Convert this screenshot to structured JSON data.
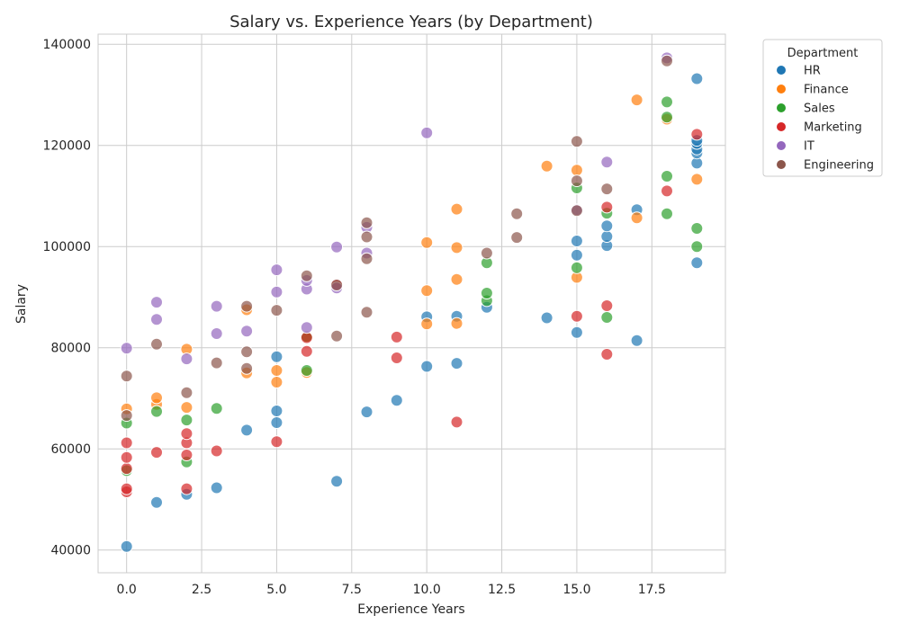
{
  "chart_data": {
    "type": "scatter",
    "title": "Salary vs. Experience Years (by Department)",
    "xlabel": "Experience Years",
    "ylabel": "Salary",
    "xlim": [
      -0.95,
      19.95
    ],
    "ylim": [
      35500,
      142000
    ],
    "x_ticks": [
      0,
      2.5,
      5,
      7.5,
      10,
      12.5,
      15,
      17.5
    ],
    "x_tick_labels": [
      "0.0",
      "2.5",
      "5.0",
      "7.5",
      "10.0",
      "12.5",
      "15.0",
      "17.5"
    ],
    "y_ticks": [
      40000,
      60000,
      80000,
      100000,
      120000,
      140000
    ],
    "y_tick_labels": [
      "40000",
      "60000",
      "80000",
      "100000",
      "120000",
      "140000"
    ],
    "grid": true,
    "legend": {
      "title": "Department",
      "placement": "outside-top-right"
    },
    "series": [
      {
        "name": "HR",
        "color": "#1f77b4",
        "points": [
          [
            0,
            40700
          ],
          [
            1,
            49400
          ],
          [
            2,
            51000
          ],
          [
            3,
            52300
          ],
          [
            4,
            63700
          ],
          [
            5,
            65200
          ],
          [
            5,
            67500
          ],
          [
            5,
            78200
          ],
          [
            7,
            53600
          ],
          [
            8,
            67300
          ],
          [
            9,
            69600
          ],
          [
            10,
            76300
          ],
          [
            10,
            86100
          ],
          [
            11,
            76900
          ],
          [
            11,
            86200
          ],
          [
            12,
            88000
          ],
          [
            14,
            85900
          ],
          [
            15,
            83000
          ],
          [
            15,
            98300
          ],
          [
            15,
            101100
          ],
          [
            16,
            100200
          ],
          [
            16,
            102000
          ],
          [
            16,
            104100
          ],
          [
            17,
            81400
          ],
          [
            17,
            107300
          ],
          [
            19,
            96800
          ],
          [
            19,
            116500
          ],
          [
            19,
            118500
          ],
          [
            19,
            119300
          ],
          [
            19,
            120400
          ],
          [
            19,
            121000
          ],
          [
            19,
            133200
          ]
        ]
      },
      {
        "name": "Finance",
        "color": "#ff7f0e",
        "points": [
          [
            0,
            67900
          ],
          [
            1,
            68800
          ],
          [
            1,
            70100
          ],
          [
            2,
            68200
          ],
          [
            2,
            79700
          ],
          [
            4,
            75000
          ],
          [
            4,
            87500
          ],
          [
            5,
            73200
          ],
          [
            5,
            75500
          ],
          [
            6,
            75100
          ],
          [
            6,
            82000
          ],
          [
            10,
            84700
          ],
          [
            10,
            91300
          ],
          [
            10,
            100800
          ],
          [
            11,
            84800
          ],
          [
            11,
            93500
          ],
          [
            11,
            99800
          ],
          [
            11,
            107400
          ],
          [
            14,
            115900
          ],
          [
            15,
            93900
          ],
          [
            15,
            115100
          ],
          [
            17,
            105700
          ],
          [
            17,
            129000
          ],
          [
            18,
            125200
          ],
          [
            19,
            113300
          ]
        ]
      },
      {
        "name": "Sales",
        "color": "#2ca02c",
        "points": [
          [
            0,
            55700
          ],
          [
            0,
            65100
          ],
          [
            1,
            67400
          ],
          [
            2,
            57400
          ],
          [
            2,
            65700
          ],
          [
            3,
            68000
          ],
          [
            6,
            75500
          ],
          [
            6,
            82200
          ],
          [
            12,
            89300
          ],
          [
            12,
            90800
          ],
          [
            12,
            96800
          ],
          [
            15,
            95800
          ],
          [
            15,
            111600
          ],
          [
            16,
            86000
          ],
          [
            16,
            106600
          ],
          [
            18,
            106500
          ],
          [
            18,
            113900
          ],
          [
            18,
            125600
          ],
          [
            18,
            128600
          ],
          [
            19,
            100000
          ],
          [
            19,
            103600
          ]
        ]
      },
      {
        "name": "Marketing",
        "color": "#d62728",
        "points": [
          [
            0,
            51500
          ],
          [
            0,
            52100
          ],
          [
            0,
            56100
          ],
          [
            0,
            58300
          ],
          [
            0,
            61200
          ],
          [
            1,
            59300
          ],
          [
            2,
            52100
          ],
          [
            2,
            58800
          ],
          [
            2,
            61200
          ],
          [
            2,
            63000
          ],
          [
            3,
            59600
          ],
          [
            5,
            61400
          ],
          [
            6,
            79300
          ],
          [
            6,
            82000
          ],
          [
            7,
            92500
          ],
          [
            9,
            78000
          ],
          [
            9,
            82100
          ],
          [
            11,
            65300
          ],
          [
            15,
            86200
          ],
          [
            16,
            78700
          ],
          [
            16,
            88300
          ],
          [
            16,
            107800
          ],
          [
            18,
            111000
          ],
          [
            19,
            122200
          ]
        ]
      },
      {
        "name": "IT",
        "color": "#9467bd",
        "points": [
          [
            0,
            79900
          ],
          [
            1,
            85600
          ],
          [
            1,
            89000
          ],
          [
            2,
            77800
          ],
          [
            3,
            82800
          ],
          [
            3,
            88200
          ],
          [
            4,
            83300
          ],
          [
            5,
            91000
          ],
          [
            5,
            95400
          ],
          [
            6,
            84000
          ],
          [
            6,
            91600
          ],
          [
            6,
            93300
          ],
          [
            7,
            91800
          ],
          [
            7,
            99900
          ],
          [
            8,
            98700
          ],
          [
            8,
            103800
          ],
          [
            10,
            122500
          ],
          [
            15,
            107300
          ],
          [
            16,
            116700
          ],
          [
            18,
            137300
          ]
        ]
      },
      {
        "name": "Engineering",
        "color": "#8c564b",
        "points": [
          [
            0,
            66600
          ],
          [
            0,
            74400
          ],
          [
            1,
            80700
          ],
          [
            2,
            71100
          ],
          [
            3,
            77000
          ],
          [
            4,
            75900
          ],
          [
            4,
            79200
          ],
          [
            4,
            88200
          ],
          [
            5,
            87400
          ],
          [
            6,
            94200
          ],
          [
            7,
            82300
          ],
          [
            7,
            92400
          ],
          [
            8,
            87000
          ],
          [
            8,
            97600
          ],
          [
            8,
            101900
          ],
          [
            8,
            104700
          ],
          [
            12,
            98700
          ],
          [
            13,
            101800
          ],
          [
            13,
            106500
          ],
          [
            15,
            107100
          ],
          [
            15,
            113000
          ],
          [
            15,
            120800
          ],
          [
            16,
            111400
          ],
          [
            18,
            136700
          ]
        ]
      }
    ]
  }
}
